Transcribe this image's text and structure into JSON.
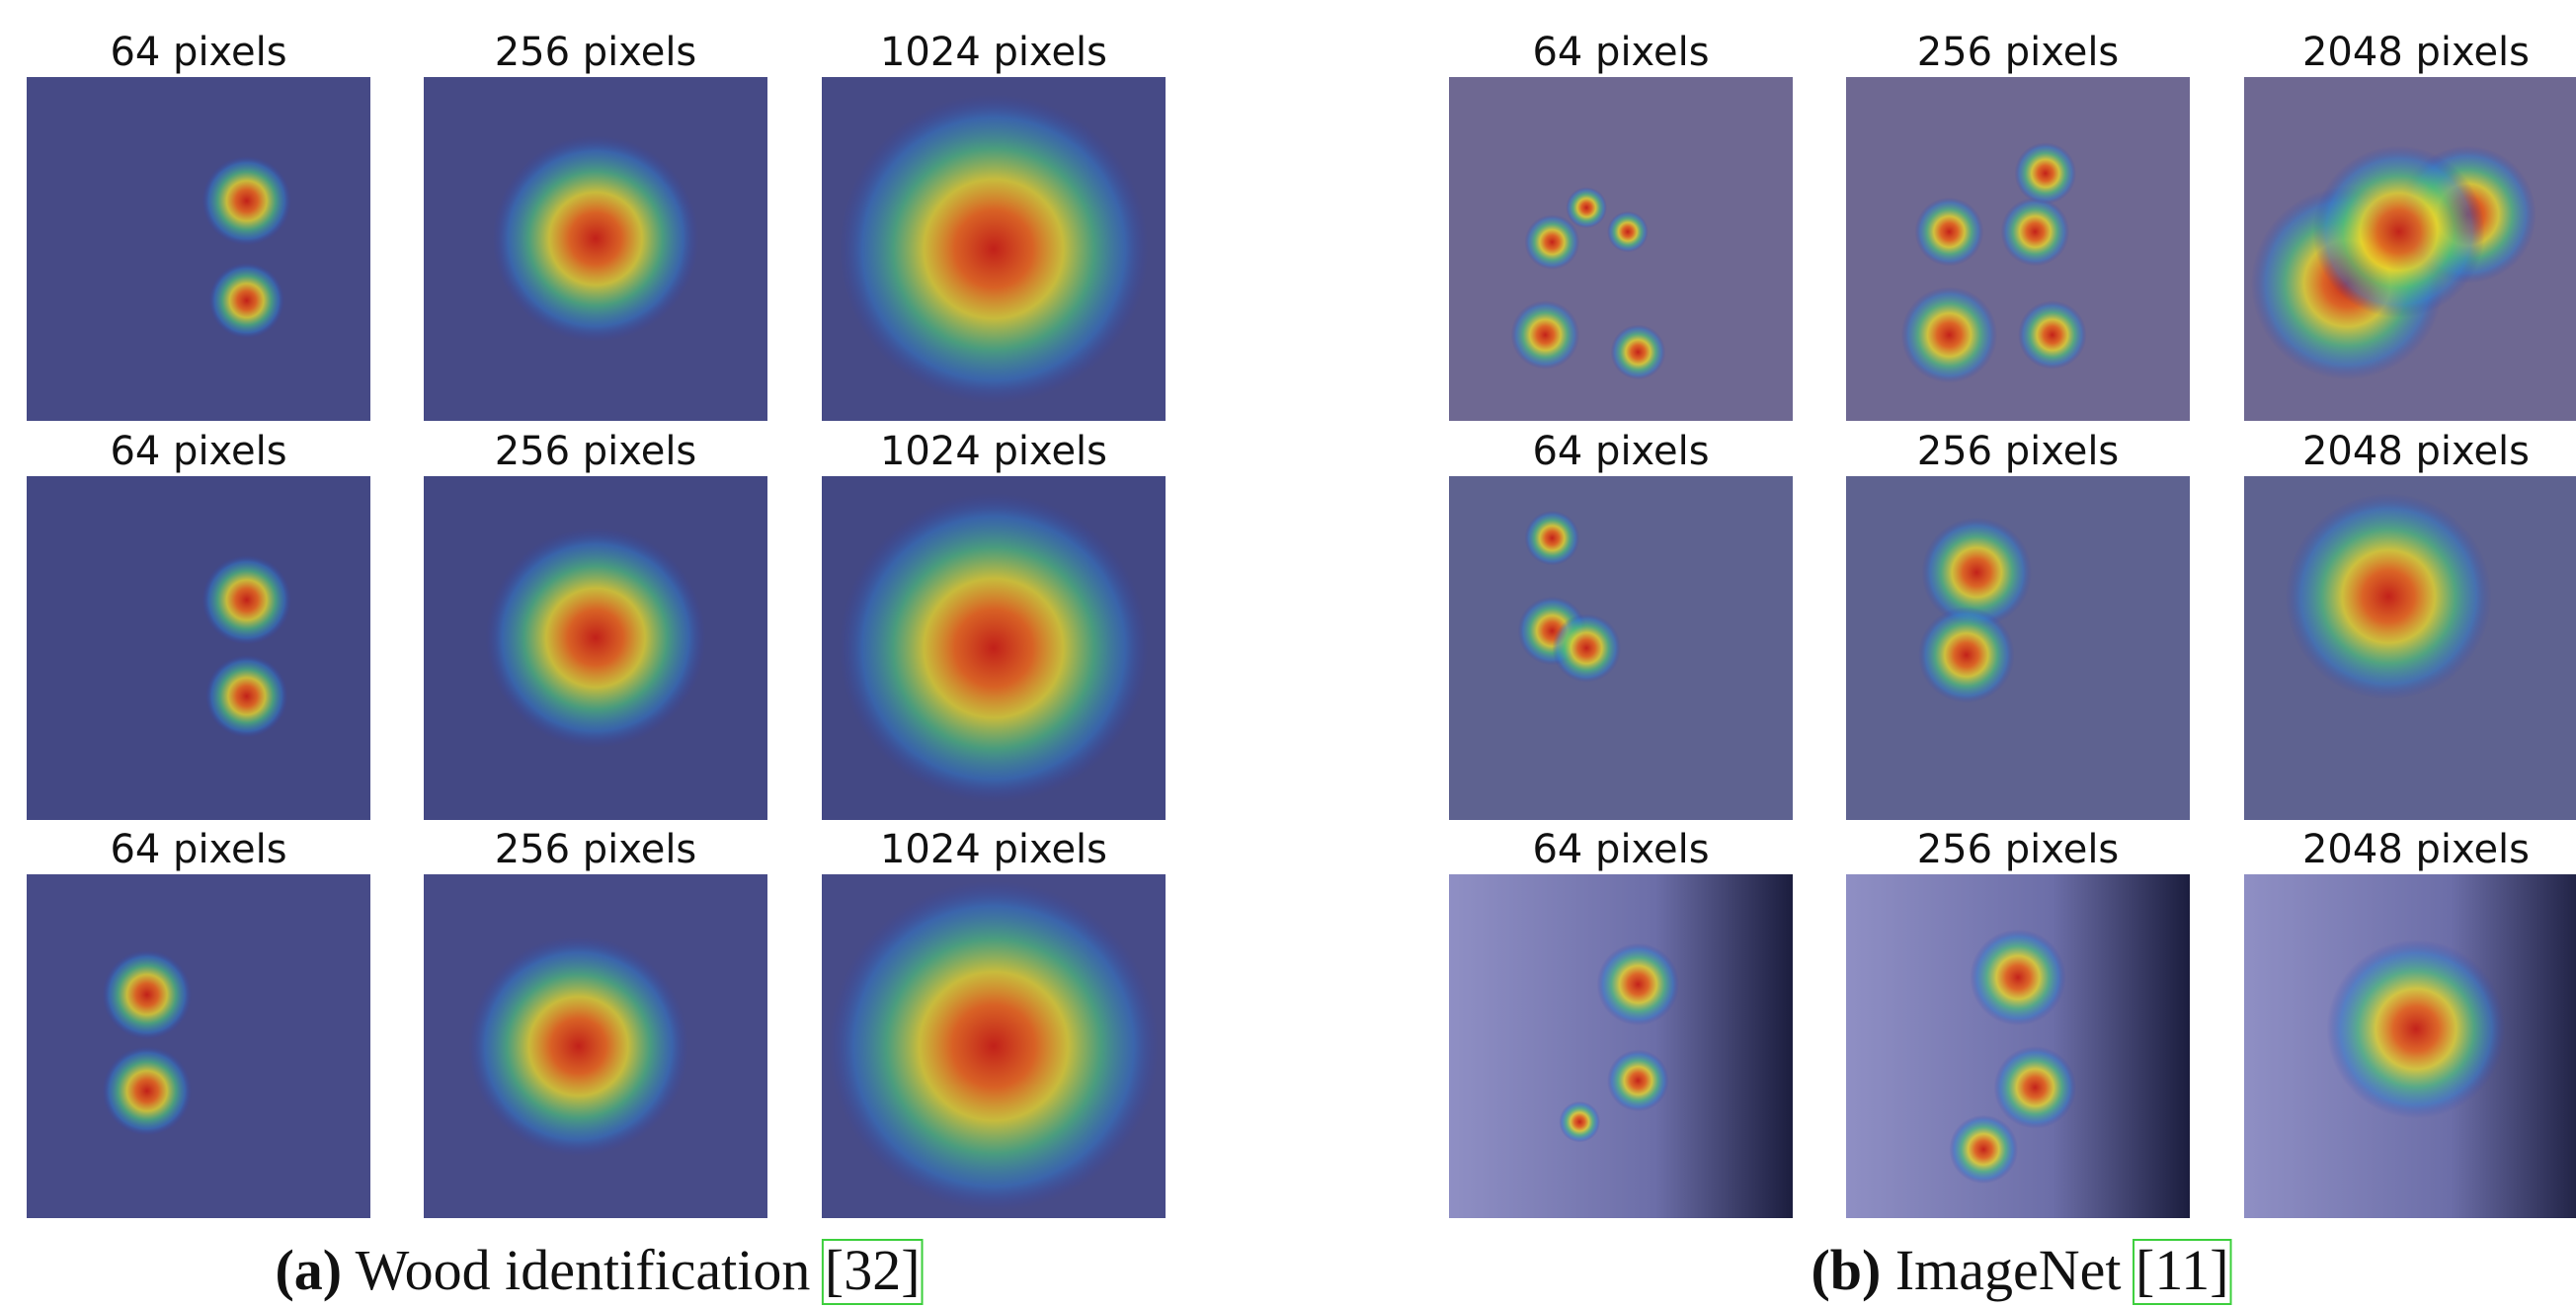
{
  "panels": [
    {
      "caption": {
        "label": "(a)",
        "text": "Wood identification",
        "citation": "[32]"
      },
      "rows": [
        [
          "64 pixels",
          "256 pixels",
          "1024 pixels"
        ],
        [
          "64 pixels",
          "256 pixels",
          "1024 pixels"
        ],
        [
          "64 pixels",
          "256 pixels",
          "1024 pixels"
        ]
      ]
    },
    {
      "caption": {
        "label": "(b)",
        "text": "ImageNet",
        "citation": "[11]"
      },
      "rows": [
        [
          "64 pixels",
          "256 pixels",
          "2048 pixels"
        ],
        [
          "64 pixels",
          "256 pixels",
          "2048 pixels"
        ],
        [
          "64 pixels",
          "256 pixels",
          "2048 pixels"
        ]
      ]
    }
  ]
}
